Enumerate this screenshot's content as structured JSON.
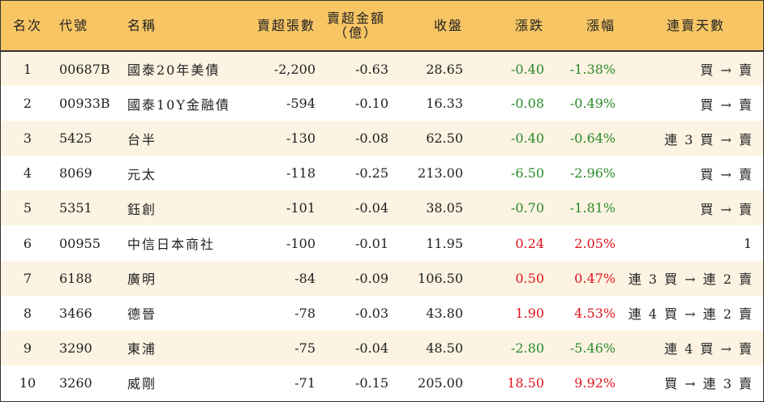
{
  "headers": {
    "rank": "名次",
    "code": "代號",
    "name": "名稱",
    "sell_shares": "賣超張數",
    "sell_amount": "賣超金額",
    "sell_amount_unit": "（億）",
    "close": "收盤",
    "change": "漲跌",
    "change_pct": "漲幅",
    "streak": "連賣天數"
  },
  "colors": {
    "header_bg": "#f7c564",
    "row_alt_bg": "#fcf3e2",
    "down": "#2a8a2a",
    "up": "#e0141e"
  },
  "rows": [
    {
      "rank": "1",
      "code": "00687B",
      "name": "國泰20年美債",
      "sell_shares": "-2,200",
      "sell_amount": "-0.63",
      "close": "28.65",
      "change": "-0.40",
      "change_pct": "-1.38%",
      "streak": "買 → 賣",
      "dir": "down"
    },
    {
      "rank": "2",
      "code": "00933B",
      "name": "國泰10Y金融債",
      "sell_shares": "-594",
      "sell_amount": "-0.10",
      "close": "16.33",
      "change": "-0.08",
      "change_pct": "-0.49%",
      "streak": "買 → 賣",
      "dir": "down"
    },
    {
      "rank": "3",
      "code": "5425",
      "name": "台半",
      "sell_shares": "-130",
      "sell_amount": "-0.08",
      "close": "62.50",
      "change": "-0.40",
      "change_pct": "-0.64%",
      "streak": "連 3 買 → 賣",
      "dir": "down"
    },
    {
      "rank": "4",
      "code": "8069",
      "name": "元太",
      "sell_shares": "-118",
      "sell_amount": "-0.25",
      "close": "213.00",
      "change": "-6.50",
      "change_pct": "-2.96%",
      "streak": "買 → 賣",
      "dir": "down"
    },
    {
      "rank": "5",
      "code": "5351",
      "name": "鈺創",
      "sell_shares": "-101",
      "sell_amount": "-0.04",
      "close": "38.05",
      "change": "-0.70",
      "change_pct": "-1.81%",
      "streak": "買 → 賣",
      "dir": "down"
    },
    {
      "rank": "6",
      "code": "00955",
      "name": "中信日本商社",
      "sell_shares": "-100",
      "sell_amount": "-0.01",
      "close": "11.95",
      "change": "0.24",
      "change_pct": "2.05%",
      "streak": "1",
      "dir": "up"
    },
    {
      "rank": "7",
      "code": "6188",
      "name": "廣明",
      "sell_shares": "-84",
      "sell_amount": "-0.09",
      "close": "106.50",
      "change": "0.50",
      "change_pct": "0.47%",
      "streak": "連 3 買 → 連 2 賣",
      "dir": "up"
    },
    {
      "rank": "8",
      "code": "3466",
      "name": "德晉",
      "sell_shares": "-78",
      "sell_amount": "-0.03",
      "close": "43.80",
      "change": "1.90",
      "change_pct": "4.53%",
      "streak": "連 4 買 → 連 2 賣",
      "dir": "up"
    },
    {
      "rank": "9",
      "code": "3290",
      "name": "東浦",
      "sell_shares": "-75",
      "sell_amount": "-0.04",
      "close": "48.50",
      "change": "-2.80",
      "change_pct": "-5.46%",
      "streak": "連 4 買 → 賣",
      "dir": "down"
    },
    {
      "rank": "10",
      "code": "3260",
      "name": "威剛",
      "sell_shares": "-71",
      "sell_amount": "-0.15",
      "close": "205.00",
      "change": "18.50",
      "change_pct": "9.92%",
      "streak": "買 → 連 3 賣",
      "dir": "up"
    }
  ]
}
